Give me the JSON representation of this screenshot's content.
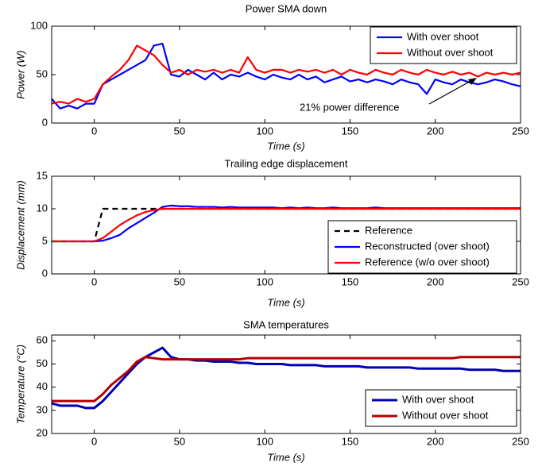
{
  "chart_data": [
    {
      "type": "line",
      "title": "Power SMA down",
      "xlabel": "Time (s)",
      "ylabel": "Power (W)",
      "x": [
        -25,
        -20,
        -15,
        -10,
        -5,
        0,
        5,
        10,
        15,
        20,
        25,
        30,
        35,
        40,
        45,
        50,
        55,
        60,
        65,
        70,
        75,
        80,
        85,
        90,
        95,
        100,
        105,
        110,
        115,
        120,
        125,
        130,
        135,
        140,
        145,
        150,
        155,
        160,
        165,
        170,
        175,
        180,
        185,
        190,
        195,
        200,
        205,
        210,
        215,
        220,
        225,
        230,
        235,
        240,
        245,
        250
      ],
      "series": [
        {
          "name": "With over shoot",
          "color": "#0000ff",
          "values": [
            25,
            15,
            18,
            15,
            20,
            20,
            40,
            45,
            50,
            55,
            60,
            65,
            80,
            82,
            50,
            48,
            55,
            50,
            45,
            52,
            45,
            50,
            48,
            52,
            48,
            45,
            50,
            47,
            45,
            50,
            45,
            48,
            42,
            45,
            48,
            43,
            45,
            42,
            45,
            43,
            40,
            45,
            42,
            40,
            30,
            45,
            42,
            40,
            45,
            42,
            40,
            42,
            45,
            43,
            40,
            38
          ]
        },
        {
          "name": "Without over shoot",
          "color": "#ff0000",
          "values": [
            20,
            22,
            20,
            25,
            22,
            25,
            40,
            48,
            55,
            65,
            80,
            75,
            70,
            60,
            52,
            55,
            50,
            55,
            53,
            55,
            52,
            55,
            52,
            68,
            55,
            52,
            55,
            55,
            52,
            55,
            53,
            55,
            52,
            55,
            50,
            55,
            52,
            50,
            55,
            52,
            50,
            55,
            52,
            50,
            55,
            52,
            50,
            53,
            50,
            52,
            48,
            52,
            50,
            52,
            50,
            52
          ]
        }
      ],
      "xlim": [
        -25,
        250
      ],
      "xticks": [
        0,
        50,
        100,
        150,
        200,
        250
      ],
      "ylim": [
        0,
        100
      ],
      "yticks": [
        0,
        50,
        100
      ],
      "legend": "upper right",
      "annotation": "21% power difference"
    },
    {
      "type": "line",
      "title": "Trailing edge displacement",
      "xlabel": "Time (s)",
      "ylabel": "Displacement (mm)",
      "x": [
        -25,
        -20,
        -15,
        -10,
        -5,
        0,
        5,
        10,
        15,
        20,
        25,
        30,
        35,
        40,
        45,
        50,
        55,
        60,
        65,
        70,
        75,
        80,
        85,
        90,
        95,
        100,
        105,
        110,
        115,
        120,
        125,
        130,
        135,
        140,
        145,
        150,
        155,
        160,
        165,
        170,
        175,
        180,
        185,
        190,
        195,
        200,
        205,
        210,
        215,
        220,
        225,
        230,
        235,
        240,
        245,
        250
      ],
      "series": [
        {
          "name": "Reference",
          "color": "#000000",
          "dash": true,
          "values": [
            5,
            5,
            5,
            5,
            5,
            5,
            10,
            10,
            10,
            10,
            10,
            10,
            10,
            10,
            10,
            10,
            10,
            10,
            10,
            10,
            10,
            10,
            10,
            10,
            10,
            10,
            10,
            10,
            10,
            10,
            10,
            10,
            10,
            10,
            10,
            10,
            10,
            10,
            10,
            10,
            10,
            10,
            10,
            10,
            10,
            10,
            10,
            10,
            10,
            10,
            10,
            10,
            10,
            10,
            10,
            10
          ]
        },
        {
          "name": "Reconstructed (over shoot)",
          "color": "#0000ff",
          "values": [
            5,
            5,
            5,
            5,
            5,
            5,
            5.1,
            5.5,
            6,
            7,
            7.8,
            8.6,
            9.4,
            10.3,
            10.5,
            10.4,
            10.4,
            10.3,
            10.3,
            10.3,
            10.2,
            10.3,
            10.2,
            10.2,
            10.2,
            10.2,
            10.2,
            10.1,
            10.2,
            10.1,
            10.2,
            10.1,
            10.1,
            10.2,
            10.1,
            10.1,
            10.1,
            10.1,
            10.2,
            10.1,
            10.1,
            10.1,
            10.1,
            10.1,
            10.1,
            10.1,
            10.1,
            10.1,
            10.1,
            10.1,
            10.1,
            10.1,
            10.1,
            10.1,
            10.1,
            10.1
          ]
        },
        {
          "name": "Reference (w/o over shoot)",
          "color": "#ff0000",
          "values": [
            5,
            5,
            5,
            5,
            5,
            5,
            5.5,
            6.5,
            7.5,
            8.3,
            9,
            9.5,
            9.8,
            10,
            10,
            10,
            10,
            10,
            10,
            10,
            10,
            10,
            10,
            10,
            10,
            10,
            10,
            10,
            10,
            10,
            10,
            10,
            10,
            10,
            10,
            10,
            10,
            10,
            10,
            10,
            10,
            10,
            10,
            10,
            10,
            10,
            10,
            10,
            10,
            10,
            10,
            10,
            10,
            10,
            10,
            10
          ]
        }
      ],
      "xlim": [
        -25,
        250
      ],
      "xticks": [
        0,
        50,
        100,
        150,
        200,
        250
      ],
      "ylim": [
        0,
        15
      ],
      "yticks": [
        0,
        5,
        10,
        15
      ],
      "legend": "lower right"
    },
    {
      "type": "line",
      "title": "SMA temperatures",
      "xlabel": "Time (s)",
      "ylabel": "Temperature (°C)",
      "x": [
        -25,
        -20,
        -15,
        -10,
        -5,
        0,
        5,
        10,
        15,
        20,
        25,
        30,
        35,
        40,
        45,
        50,
        55,
        60,
        65,
        70,
        75,
        80,
        85,
        90,
        95,
        100,
        105,
        110,
        115,
        120,
        125,
        130,
        135,
        140,
        145,
        150,
        155,
        160,
        165,
        170,
        175,
        180,
        185,
        190,
        195,
        200,
        205,
        210,
        215,
        220,
        225,
        230,
        235,
        240,
        245,
        250
      ],
      "series": [
        {
          "name": "With over shoot",
          "color": "#0000b4",
          "values": [
            33,
            32,
            32,
            32,
            31,
            31,
            34,
            38,
            42,
            46,
            50,
            53,
            55,
            57,
            53,
            52,
            52,
            51.5,
            51.5,
            51,
            51,
            51,
            50.5,
            50.5,
            50,
            50,
            50,
            50,
            49.5,
            49.5,
            49.5,
            49.5,
            49,
            49,
            49,
            49,
            49,
            48.5,
            48.5,
            48.5,
            48.5,
            48.5,
            48.5,
            48,
            48,
            48,
            48,
            48,
            48,
            47.5,
            47.5,
            47.5,
            47.5,
            47,
            47,
            47
          ]
        },
        {
          "name": "Without over shoot",
          "color": "#b40000",
          "values": [
            34,
            34,
            34,
            34,
            34,
            34,
            37,
            41,
            44,
            47,
            51,
            53,
            52.5,
            52,
            52,
            52,
            52,
            52,
            52,
            52,
            52,
            52,
            52,
            52.5,
            52.5,
            52.5,
            52.5,
            52.5,
            52.5,
            52.5,
            52.5,
            52.5,
            52.5,
            52.5,
            52.5,
            52.5,
            52.5,
            52.5,
            52.5,
            52.5,
            52.5,
            52.5,
            52.5,
            52.5,
            52.5,
            52.5,
            52.5,
            52.5,
            53,
            53,
            53,
            53,
            53,
            53,
            53,
            53
          ]
        }
      ],
      "xlim": [
        -25,
        250
      ],
      "xticks": [
        0,
        50,
        100,
        150,
        200,
        250
      ],
      "ylim": [
        20,
        62.5
      ],
      "yticks": [
        20,
        30,
        40,
        50,
        60
      ],
      "legend": "lower right"
    }
  ]
}
